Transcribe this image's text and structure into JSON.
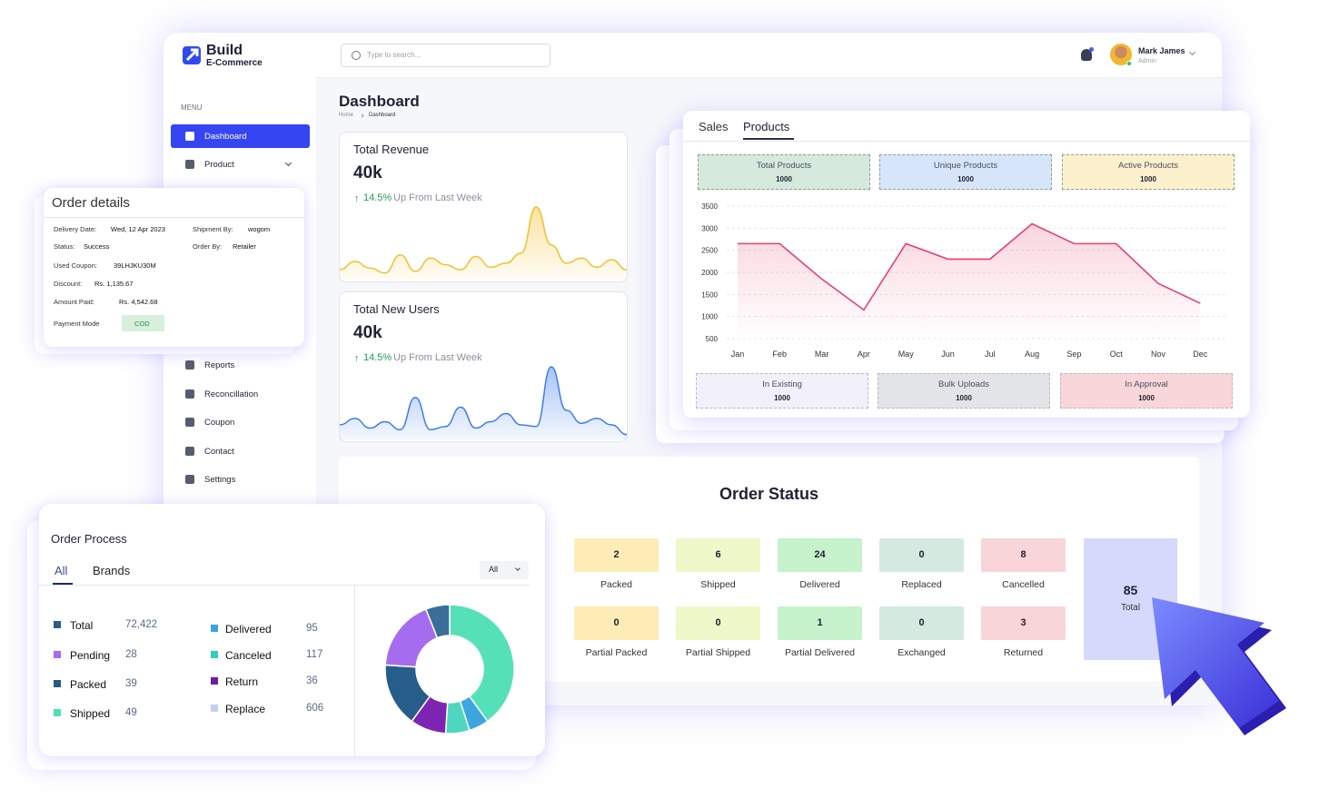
{
  "brand": {
    "name": "Build",
    "tagline": "E-Commerce"
  },
  "search": {
    "placeholder": "Type to search..."
  },
  "user": {
    "name": "Mark James",
    "role": "Admin"
  },
  "menu": {
    "heading": "MENU",
    "items": [
      "Dashboard",
      "Product",
      "Reports",
      "Reconcillation",
      "Coupon",
      "Contact",
      "Settings"
    ]
  },
  "page": {
    "title": "Dashboard",
    "breadcrumb": [
      "Home",
      "Dashboard"
    ]
  },
  "cards": [
    {
      "title": "Total Revenue",
      "value": "40k",
      "change": "14.5%",
      "change_text": "Up From Last Week",
      "color": "#f2c12e",
      "trend": [
        12,
        22,
        14,
        8,
        30,
        10,
        26,
        18,
        12,
        28,
        15,
        20,
        32,
        88,
        42,
        20,
        26,
        15,
        24,
        12
      ]
    },
    {
      "title": "Total New Users",
      "value": "40k",
      "change": "14.5%",
      "change_text": "Up From Last Week",
      "color": "#3d7cf0",
      "trend": [
        18,
        26,
        14,
        22,
        12,
        52,
        12,
        16,
        40,
        14,
        22,
        32,
        18,
        16,
        90,
        36,
        20,
        26,
        18,
        6
      ]
    }
  ],
  "products_panel": {
    "tabs": [
      "Sales",
      "Products"
    ],
    "top_stats": [
      {
        "label": "Total Products",
        "value": 1000,
        "color": "#d6e9dd"
      },
      {
        "label": "Unique Products",
        "value": 1000,
        "color": "#d7e5fb"
      },
      {
        "label": "Active Products",
        "value": 1000,
        "color": "#fcf1cc"
      }
    ],
    "chart": {
      "type": "line",
      "categories": [
        "Jan",
        "Feb",
        "Mar",
        "Apr",
        "May",
        "Jun",
        "Jul",
        "Aug",
        "Sep",
        "Oct",
        "Nov",
        "Dec"
      ],
      "values": [
        2650,
        2650,
        1850,
        1150,
        2650,
        2300,
        2300,
        3100,
        2650,
        2650,
        1750,
        1300
      ],
      "color": "#e8416a",
      "ylim": [
        500,
        3500
      ],
      "yticks": [
        500,
        1000,
        1500,
        2000,
        2500,
        3000,
        3500
      ],
      "grid": true
    },
    "bottom_stats": [
      {
        "label": "In Existing",
        "value": 1000,
        "color": "#f1f0fb"
      },
      {
        "label": "Bulk Uploads",
        "value": 1000,
        "color": "#e3e4e7"
      },
      {
        "label": "In Approval",
        "value": 1000,
        "color": "#f8d6d9"
      }
    ]
  },
  "order_details": {
    "title": "Order details",
    "fields": [
      {
        "label": "Delivery Date:",
        "value": "Wed, 12 Apr 2023"
      },
      {
        "label": "Shipment By:",
        "value": "wogom"
      },
      {
        "label": "Status:",
        "value": "Success"
      },
      {
        "label": "Order By:",
        "value": "Retailer"
      },
      {
        "label": "Used Coupon:",
        "value": "39LHJKU30M"
      },
      {
        "label": "Discount:",
        "value": "Rs. 1,135.67"
      },
      {
        "label": "Amount Paid:",
        "value": "Rs. 4,542.68"
      },
      {
        "label": "Payment Mode",
        "value": "COD"
      }
    ]
  },
  "order_status": {
    "title": "Order Status",
    "items": [
      {
        "count": 2,
        "label": "Packed",
        "color": "#fdecb6"
      },
      {
        "count": 6,
        "label": "Shipped",
        "color": "#eef8c9"
      },
      {
        "count": 24,
        "label": "Delivered",
        "color": "#c6f2cc"
      },
      {
        "count": 0,
        "label": "Replaced",
        "color": "#d4e9e0"
      },
      {
        "count": 8,
        "label": "Cancelled",
        "color": "#f7d5d8"
      },
      {
        "count": 0,
        "label": "Partial Packed",
        "color": "#fdecb6"
      },
      {
        "count": 0,
        "label": "Partial Shipped",
        "color": "#eef8c9"
      },
      {
        "count": 1,
        "label": "Partial Delivered",
        "color": "#c6f2cc"
      },
      {
        "count": 0,
        "label": "Exchanged",
        "color": "#d4e9e0"
      },
      {
        "count": 3,
        "label": "Returned",
        "color": "#f7d5d8"
      }
    ],
    "total": {
      "count": 85,
      "label": "Total",
      "color": "#d6d9fb"
    }
  },
  "order_process": {
    "title": "Order Process",
    "tabs": [
      "All",
      "Brands"
    ],
    "filter": "All",
    "items": [
      {
        "name": "Total",
        "value": 72422,
        "label": "72,422",
        "color": "#2a5c8a"
      },
      {
        "name": "Pending",
        "value": 28,
        "color": "#a66cf0"
      },
      {
        "name": "Packed",
        "value": 39,
        "color": "#245a86"
      },
      {
        "name": "Shipped",
        "value": 49,
        "color": "#4ee0b2"
      },
      {
        "name": "Delivered",
        "value": 95,
        "color": "#3ba6e0"
      },
      {
        "name": "Canceled",
        "value": 117,
        "color": "#2fd1b5"
      },
      {
        "name": "Return",
        "value": 36,
        "color": "#6a1fa0"
      },
      {
        "name": "Replace",
        "value": 606,
        "color": "#c5cff5"
      }
    ],
    "donut": {
      "values": [
        40,
        5,
        6,
        9,
        16,
        18,
        6
      ],
      "colors": [
        "#55e0b8",
        "#3ea6df",
        "#4fd6c0",
        "#7e24b3",
        "#275d8a",
        "#a66cf0",
        "#3a6e99"
      ]
    }
  }
}
